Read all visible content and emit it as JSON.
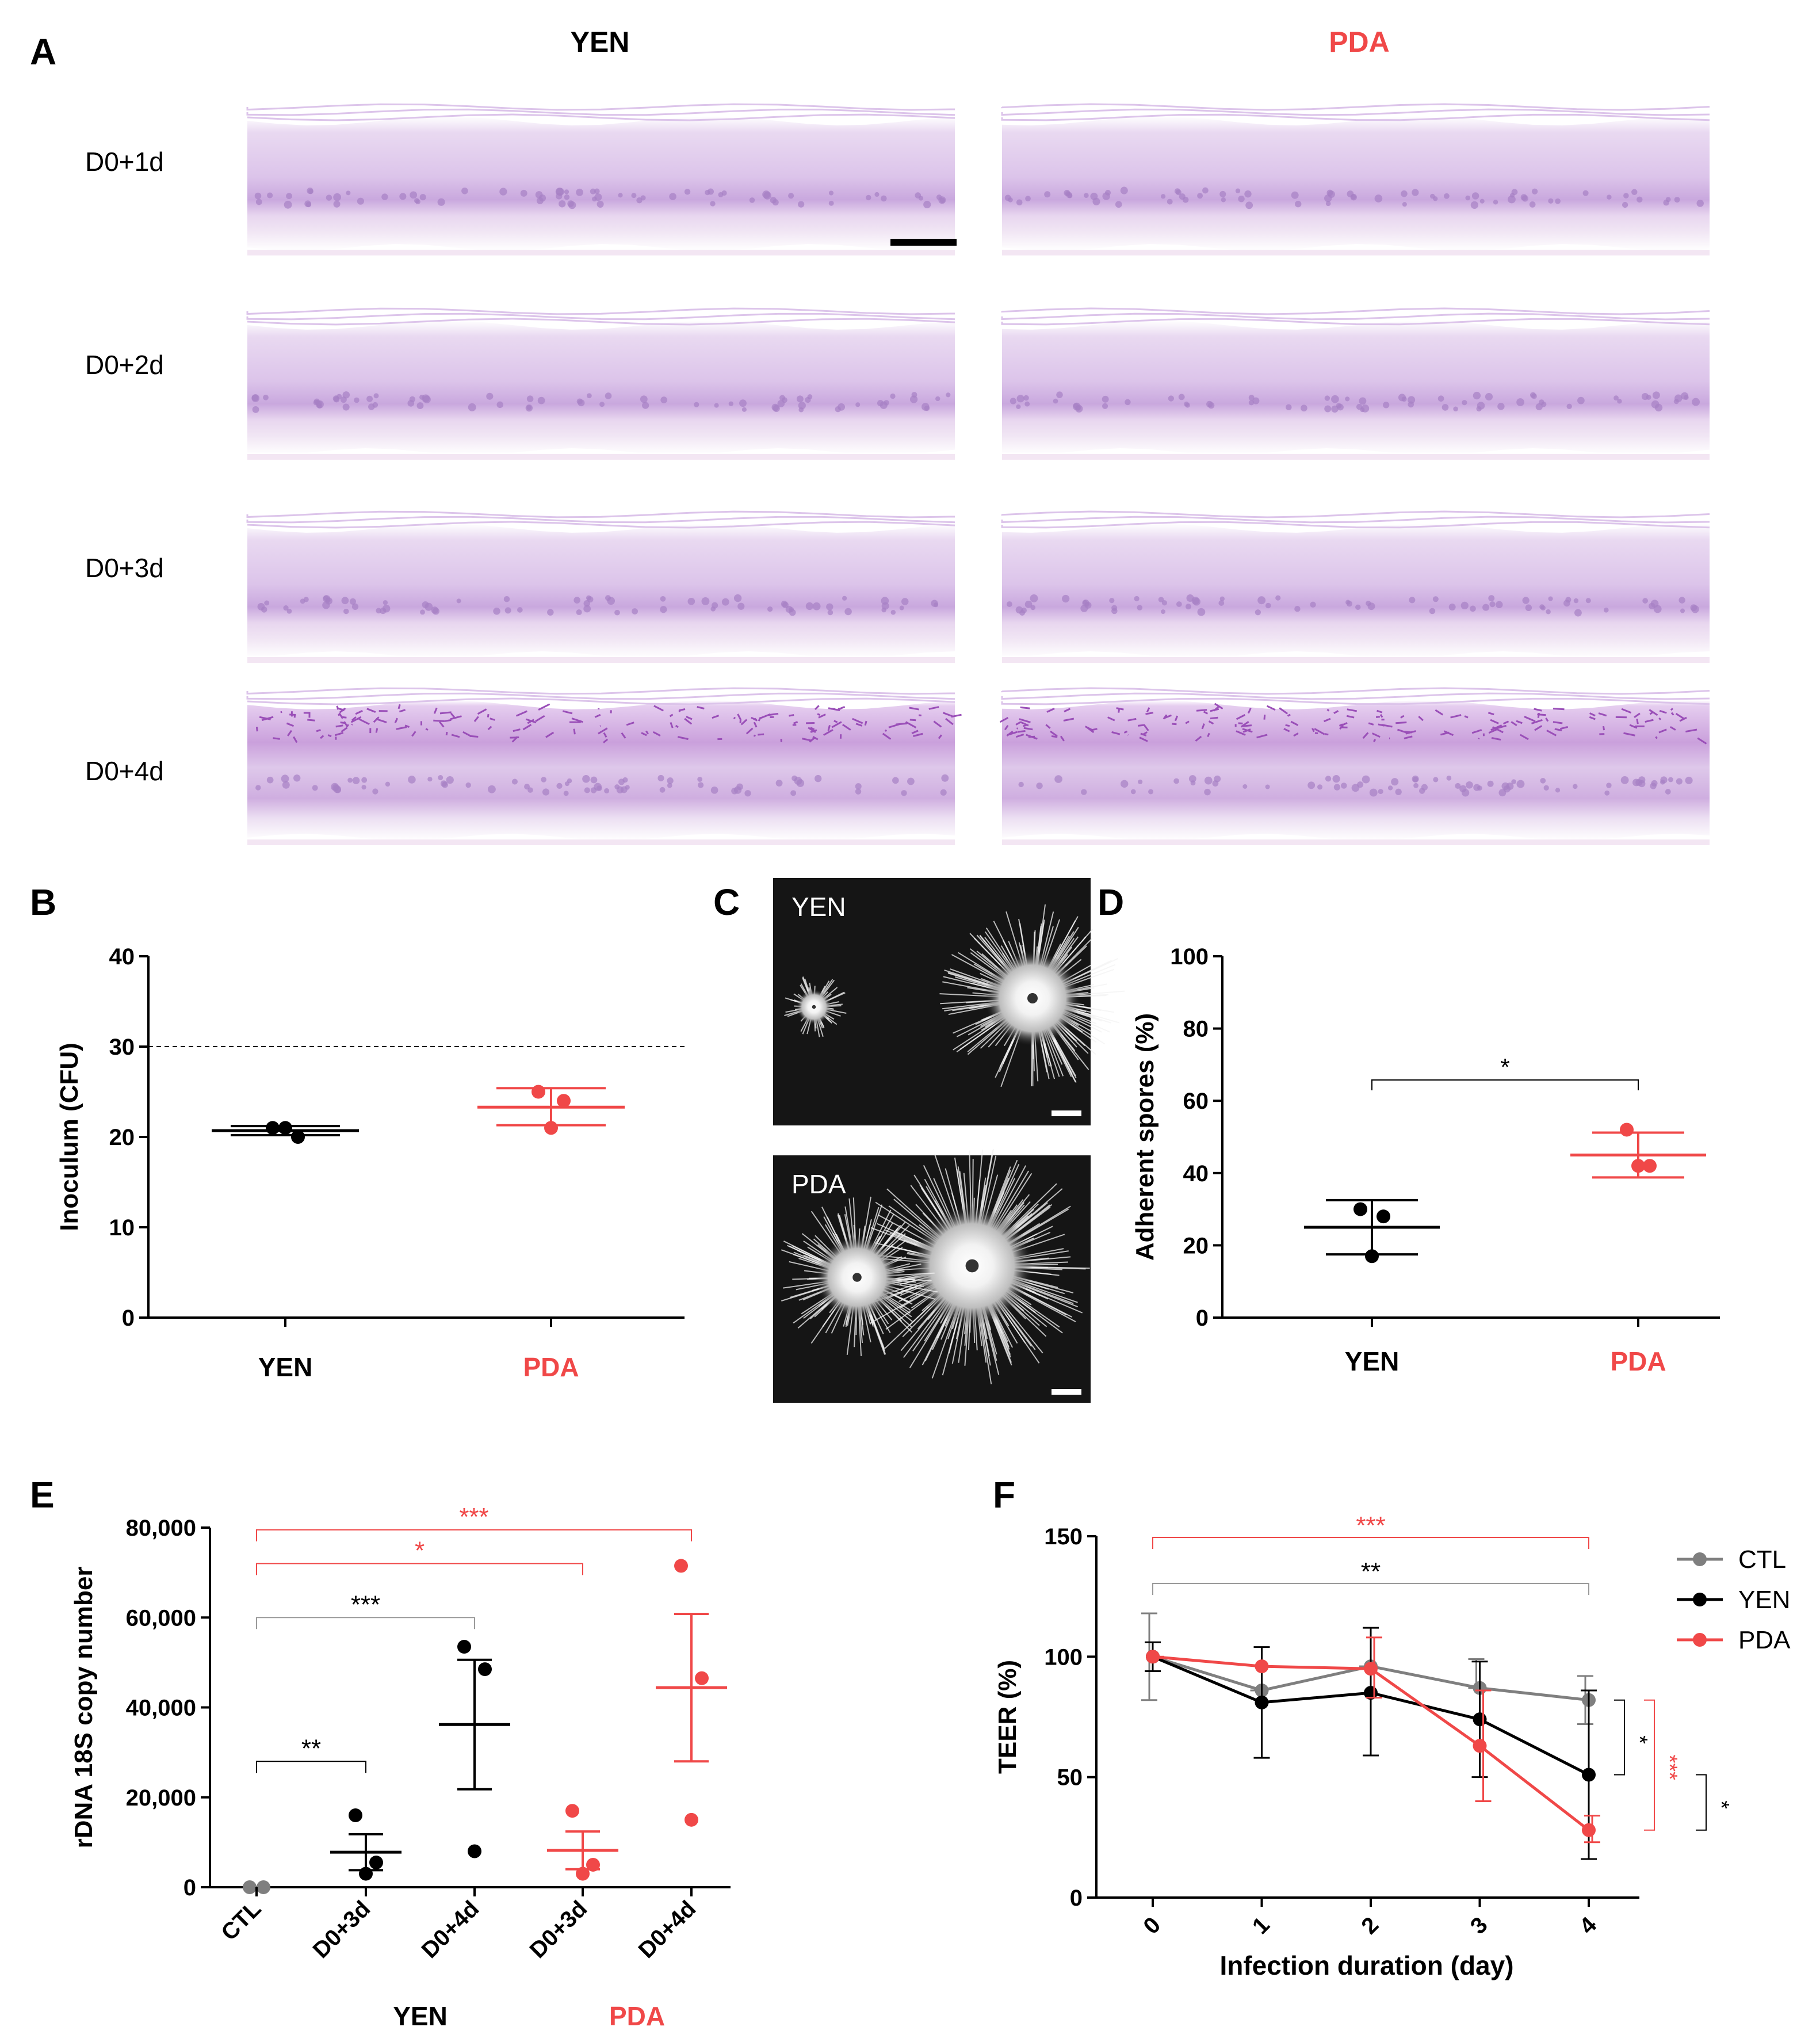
{
  "colors": {
    "black": "#000000",
    "red": "#f04848",
    "gray": "#7f7f7f",
    "stain": "#d9c2e6",
    "stain_dark": "#9a4fb8"
  },
  "panel_letters": {
    "A": "A",
    "B": "B",
    "C": "C",
    "D": "D",
    "E": "E",
    "F": "F"
  },
  "panelA": {
    "col_headers": [
      "YEN",
      "PDA"
    ],
    "row_labels": [
      "D0+1d",
      "D0+2d",
      "D0+3d",
      "D0+4d"
    ],
    "scale_bar": true
  },
  "panelC": {
    "labels": [
      "YEN",
      "PDA"
    ]
  },
  "chart_data": [
    {
      "panel": "B",
      "type": "scatter",
      "ylabel": "Inoculum (CFU)",
      "ylim": [
        0,
        40
      ],
      "yticks": [
        0,
        10,
        20,
        30,
        40
      ],
      "categories": [
        "YEN",
        "PDA"
      ],
      "category_colors": [
        "black",
        "red"
      ],
      "reference_line": 30,
      "series": [
        {
          "name": "YEN",
          "points": [
            21,
            20,
            21
          ],
          "mean": 20.7,
          "err": [
            20.2,
            21.2
          ]
        },
        {
          "name": "PDA",
          "points": [
            25,
            24,
            21
          ],
          "mean": 23.3,
          "err": [
            21.3,
            25.4
          ]
        }
      ]
    },
    {
      "panel": "D",
      "type": "scatter",
      "ylabel": "Adherent spores (%)",
      "ylim": [
        0,
        100
      ],
      "yticks": [
        0,
        20,
        40,
        60,
        80,
        100
      ],
      "categories": [
        "YEN",
        "PDA"
      ],
      "category_colors": [
        "black",
        "red"
      ],
      "significance": [
        {
          "from": 0,
          "to": 1,
          "label": "*",
          "color": "black"
        }
      ],
      "series": [
        {
          "name": "YEN",
          "points": [
            30,
            28,
            17
          ],
          "mean": 25,
          "err": [
            17.5,
            32.5
          ]
        },
        {
          "name": "PDA",
          "points": [
            52,
            42,
            42
          ],
          "mean": 45,
          "err": [
            38.8,
            51.2
          ]
        }
      ]
    },
    {
      "panel": "E",
      "type": "scatter",
      "ylabel": "rDNA 18S copy number",
      "ylim": [
        0,
        80000
      ],
      "yticks": [
        0,
        20000,
        40000,
        60000,
        80000
      ],
      "ytick_labels": [
        "0",
        "20,000",
        "40,000",
        "60,000",
        "80,000"
      ],
      "categories": [
        "CTL",
        "D0+3d",
        "D0+4d",
        "D0+3d",
        "D0+4d"
      ],
      "category_colors": [
        "gray",
        "black",
        "black",
        "red",
        "red"
      ],
      "group_labels": [
        {
          "label": "YEN",
          "over": [
            1,
            2
          ],
          "color": "black"
        },
        {
          "label": "PDA",
          "over": [
            3,
            4
          ],
          "color": "red"
        }
      ],
      "significance": [
        {
          "from": 0,
          "to": 1,
          "label": "**",
          "color": "black",
          "y": 28000
        },
        {
          "from": 0,
          "to": 2,
          "label": "***",
          "color": "black",
          "y": 60000
        },
        {
          "from": 0,
          "to": 3,
          "label": "*",
          "color": "red",
          "y": 72000
        },
        {
          "from": 0,
          "to": 4,
          "label": "***",
          "color": "red",
          "y": 79500
        }
      ],
      "series": [
        {
          "name": "CTL",
          "points": [
            0,
            0
          ],
          "mean": 0,
          "err": [
            0,
            0
          ]
        },
        {
          "name": "YEN D0+3d",
          "points": [
            16000,
            5500,
            3000
          ],
          "mean": 7800,
          "err": [
            3800,
            11800
          ]
        },
        {
          "name": "YEN D0+4d",
          "points": [
            53500,
            48500,
            8000
          ],
          "mean": 36200,
          "err": [
            21800,
            50600
          ]
        },
        {
          "name": "PDA D0+3d",
          "points": [
            17000,
            5000,
            3000
          ],
          "mean": 8200,
          "err": [
            4000,
            12400
          ]
        },
        {
          "name": "PDA D0+4d",
          "points": [
            71500,
            46500,
            15000
          ],
          "mean": 44400,
          "err": [
            28000,
            60800
          ]
        }
      ]
    },
    {
      "panel": "F",
      "type": "line",
      "title": "",
      "xlabel": "Infection duration (day)",
      "ylabel": "TEER (%)",
      "x": [
        0,
        1,
        2,
        3,
        4
      ],
      "ylim": [
        0,
        150
      ],
      "yticks": [
        0,
        50,
        100,
        150
      ],
      "legend": "top-right",
      "series": [
        {
          "name": "CTL",
          "color": "gray",
          "values": [
            100,
            86,
            96,
            87,
            82
          ],
          "err_low": [
            82,
            86,
            96,
            87,
            72
          ],
          "err_high": [
            118,
            86,
            96,
            99,
            92
          ]
        },
        {
          "name": "YEN",
          "color": "black",
          "values": [
            100,
            81,
            85,
            74,
            51
          ],
          "err_low": [
            94,
            58,
            59,
            50,
            16
          ],
          "err_high": [
            106,
            104,
            112,
            98,
            86
          ]
        },
        {
          "name": "PDA",
          "color": "red",
          "values": [
            100,
            96,
            95,
            63,
            28
          ],
          "err_low": [
            100,
            96,
            83,
            40,
            23
          ],
          "err_high": [
            100,
            96,
            108,
            86,
            34
          ]
        }
      ],
      "significance": [
        {
          "from_x": 0,
          "to_x": 4,
          "label": "***",
          "color": "red",
          "y": 150
        },
        {
          "from_x": 0,
          "to_x": 4,
          "label": "**",
          "color": "black",
          "y": 131
        }
      ],
      "side_brackets": [
        {
          "label": "*",
          "color": "black",
          "y_top": 82,
          "y_bottom": 51
        },
        {
          "label": "***",
          "color": "red",
          "y_top": 82,
          "y_bottom": 28
        },
        {
          "label": "*",
          "color": "black",
          "y_top": 51,
          "y_bottom": 28
        }
      ]
    }
  ]
}
